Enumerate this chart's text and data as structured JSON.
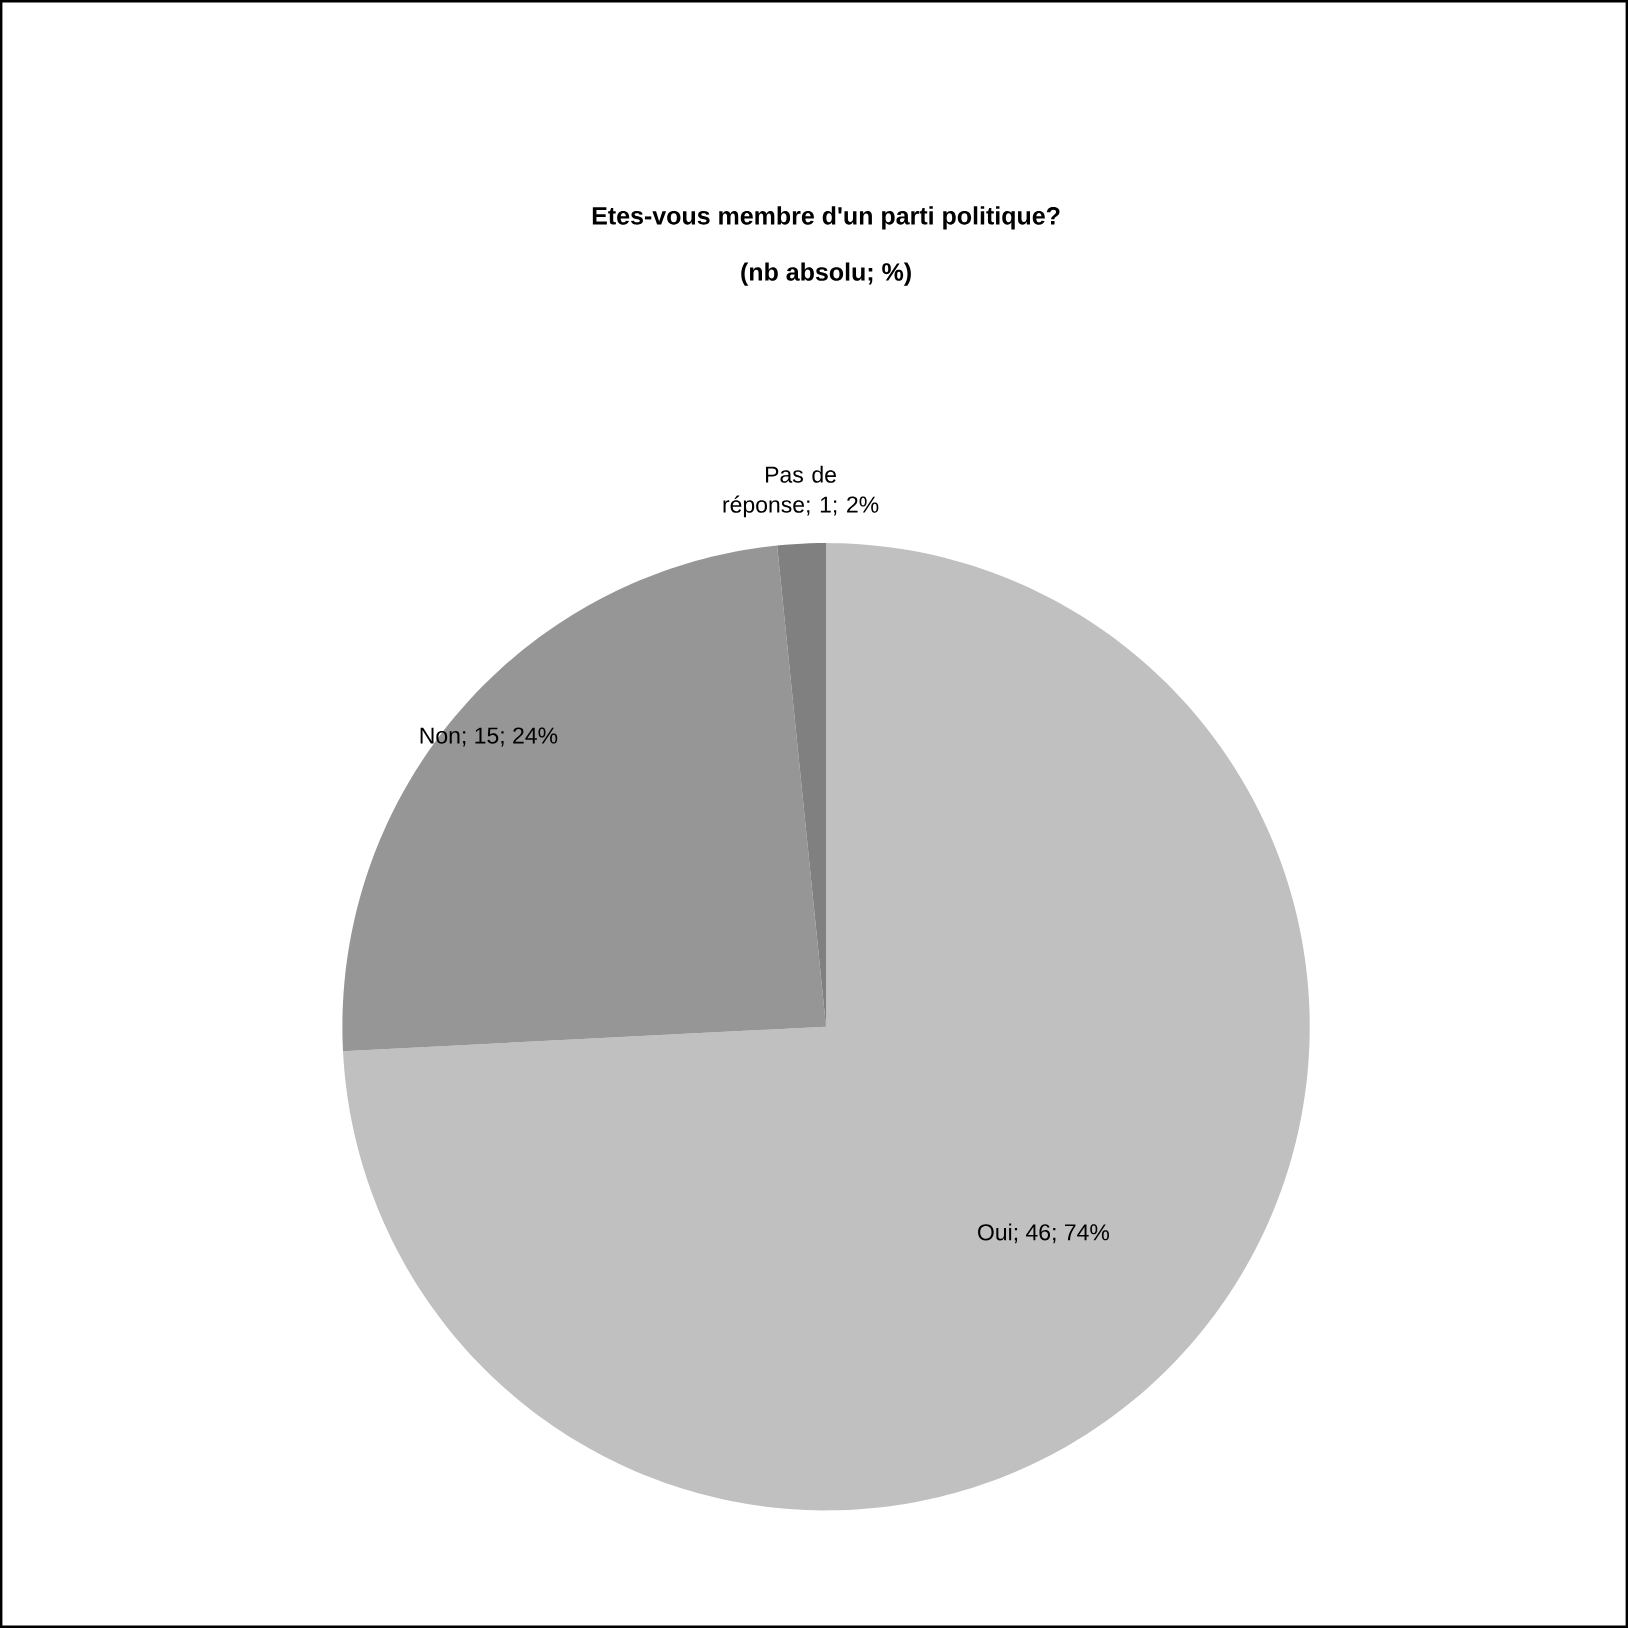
{
  "chart_data": {
    "type": "pie",
    "title": "Etes-vous membre d'un parti politique?",
    "subtitle": "(nb absolu; %)",
    "categories": [
      "Oui",
      "Non",
      "Pas de réponse"
    ],
    "values": [
      46,
      15,
      1
    ],
    "value_labels": [
      "; 46; 74%",
      "; 15; 24%",
      "; 1; 2%"
    ],
    "colors": [
      "#c0c0c0",
      "#969696",
      "#808080"
    ]
  }
}
